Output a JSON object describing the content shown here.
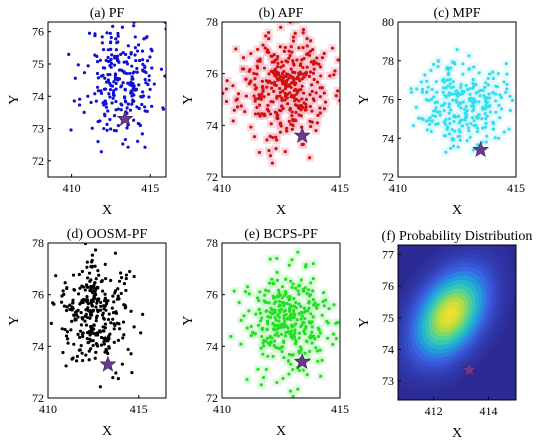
{
  "chart_data": [
    {
      "id": "pf",
      "type": "scatter",
      "title": "(a) PF",
      "xlabel": "X",
      "ylabel": "Y",
      "xticks": [
        410,
        415
      ],
      "yticks": [
        72,
        73,
        74,
        75,
        76
      ],
      "xlim": [
        408.5,
        416
      ],
      "ylim": [
        71.5,
        76.3
      ],
      "grid": false,
      "color": "#1010d0",
      "cloud": {
        "center": [
          413.2,
          74.5
        ],
        "spread": [
          1.2,
          0.9
        ],
        "count": 260,
        "seed": 11
      },
      "star": {
        "x": 413.4,
        "y": 73.3,
        "color": "#6b3a8c"
      }
    },
    {
      "id": "apf",
      "type": "scatter",
      "title": "(b) APF",
      "xlabel": "X",
      "ylabel": "Y",
      "xticks": [
        410,
        415
      ],
      "yticks": [
        72,
        74,
        76,
        78
      ],
      "xlim": [
        410,
        415
      ],
      "ylim": [
        72,
        78
      ],
      "grid": false,
      "color": "#d01010",
      "halo": "#f4b8c4",
      "cloud": {
        "center": [
          412.6,
          75.5
        ],
        "spread": [
          0.95,
          1.0
        ],
        "count": 360,
        "seed": 23
      },
      "star": {
        "x": 413.4,
        "y": 73.6,
        "color": "#6b3a8c"
      }
    },
    {
      "id": "mpf",
      "type": "scatter",
      "title": "(c) MPF",
      "xlabel": "X",
      "ylabel": "Y",
      "xticks": [
        410,
        415
      ],
      "yticks": [
        72,
        74,
        76,
        78,
        80
      ],
      "xlim": [
        410,
        415
      ],
      "ylim": [
        72,
        80
      ],
      "grid": false,
      "color": "#30e0f0",
      "halo": "#d8f6fa",
      "cloud": {
        "center": [
          412.7,
          75.9
        ],
        "spread": [
          0.9,
          1.1
        ],
        "count": 280,
        "seed": 37
      },
      "star": {
        "x": 413.5,
        "y": 73.4,
        "color": "#6b3a8c"
      }
    },
    {
      "id": "oosm",
      "type": "scatter",
      "title": "(d) OOSM-PF",
      "xlabel": "X",
      "ylabel": "Y",
      "xticks": [
        410,
        415
      ],
      "yticks": [
        72,
        74,
        76,
        78
      ],
      "xlim": [
        410,
        416.5
      ],
      "ylim": [
        72,
        78
      ],
      "grid": false,
      "color": "#000000",
      "cloud": {
        "center": [
          412.6,
          75.3
        ],
        "spread": [
          1.0,
          1.0
        ],
        "count": 300,
        "seed": 41
      },
      "star": {
        "x": 413.3,
        "y": 73.3,
        "color": "#6b3a8c"
      }
    },
    {
      "id": "bcps",
      "type": "scatter",
      "title": "(e) BCPS-PF",
      "xlabel": "X",
      "ylabel": "Y",
      "xticks": [
        410,
        415
      ],
      "yticks": [
        72,
        74,
        76,
        78
      ],
      "xlim": [
        410,
        415
      ],
      "ylim": [
        72,
        78
      ],
      "grid": false,
      "color": "#20e020",
      "halo": "#c8f5c8",
      "cloud": {
        "center": [
          412.9,
          74.9
        ],
        "spread": [
          0.95,
          1.0
        ],
        "count": 340,
        "seed": 53
      },
      "star": {
        "x": 413.4,
        "y": 73.4,
        "color": "#6b3a8c"
      }
    },
    {
      "id": "prob",
      "type": "heatmap",
      "title": "(f) Probability Distribution",
      "xlabel": "X",
      "ylabel": "Y",
      "xticks": [
        412,
        414
      ],
      "yticks": [
        73,
        74,
        75,
        76,
        77
      ],
      "xlim": [
        410.7,
        415
      ],
      "ylim": [
        72.4,
        77.3
      ],
      "grid": false,
      "gaussian": {
        "mean": [
          412.6,
          75.1
        ],
        "sigma": [
          0.62,
          0.85
        ],
        "angle_deg": 32
      },
      "colormap": [
        "#2c2a94",
        "#3a5ce0",
        "#1fa6dc",
        "#3cd0a8",
        "#a6dc4a",
        "#f8e02a"
      ],
      "star": {
        "x": 413.3,
        "y": 73.35,
        "color": "#6b3a8c"
      }
    }
  ]
}
